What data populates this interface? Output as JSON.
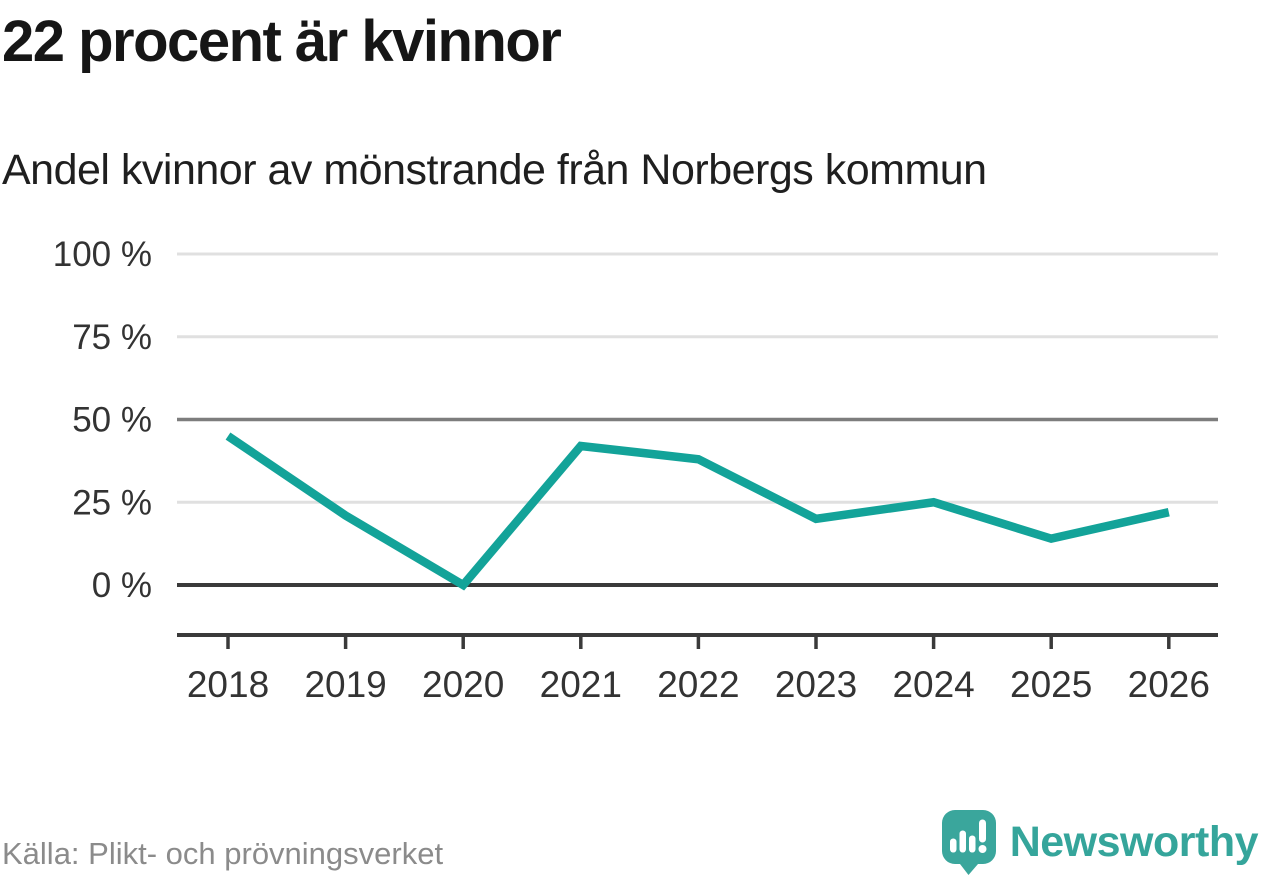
{
  "header": {
    "title": "22 procent är kvinnor",
    "subtitle": "Andel kvinnor av mönstrande från Norbergs kommun"
  },
  "chart_data": {
    "type": "line",
    "title": "22 procent är kvinnor",
    "subtitle": "Andel kvinnor av mönstrande från Norbergs kommun",
    "x": [
      2018,
      2019,
      2020,
      2021,
      2022,
      2023,
      2024,
      2025,
      2026
    ],
    "series": [
      {
        "name": "Andel kvinnor av mönstrande, Norbergs kommun",
        "values": [
          45,
          21,
          0,
          42,
          38,
          20,
          25,
          14,
          22
        ]
      }
    ],
    "xlabel": "",
    "ylabel": "",
    "ylim": [
      0,
      100
    ],
    "yticks": [
      0,
      25,
      50,
      75,
      100
    ],
    "ytick_suffix": " %",
    "reference_line": 50,
    "grid": true,
    "legend": false,
    "line_color": "#13a399"
  },
  "footer": {
    "source": "Källa: Plikt- och prövningsverket",
    "brand": "Newsworthy"
  },
  "icons": {
    "logo": "newsworthy-speech-bubble-bar-chart-icon"
  },
  "colors": {
    "line": "#13a399",
    "grid_light": "#e0e0e0",
    "grid_reference": "#7d7d7d",
    "grid_zero": "#3a3a3a",
    "axis": "#3a3a3a",
    "tick_label": "#333333",
    "title_text": "#161616",
    "source_text": "#8b8b8b",
    "brand_teal": "#35a59b"
  }
}
